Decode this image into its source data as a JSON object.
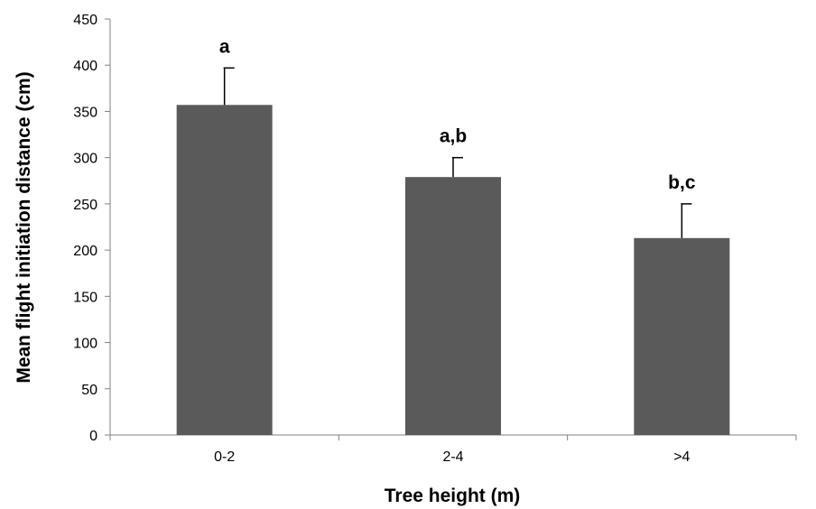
{
  "chart_data": {
    "type": "bar",
    "categories": [
      "0-2",
      "2-4",
      ">4"
    ],
    "values": [
      357,
      279,
      213
    ],
    "errors": [
      40,
      21,
      37
    ],
    "significance_labels": [
      "a",
      "a,b",
      "b,c"
    ],
    "xlabel": "Tree height (m)",
    "ylabel": "Mean flight initiation distance (cm)",
    "ylim": [
      0,
      450
    ],
    "yticks": [
      0,
      50,
      100,
      150,
      200,
      250,
      300,
      350,
      400,
      450
    ],
    "grid": false,
    "legend": "none",
    "bar_color": "#5a5a5a"
  }
}
